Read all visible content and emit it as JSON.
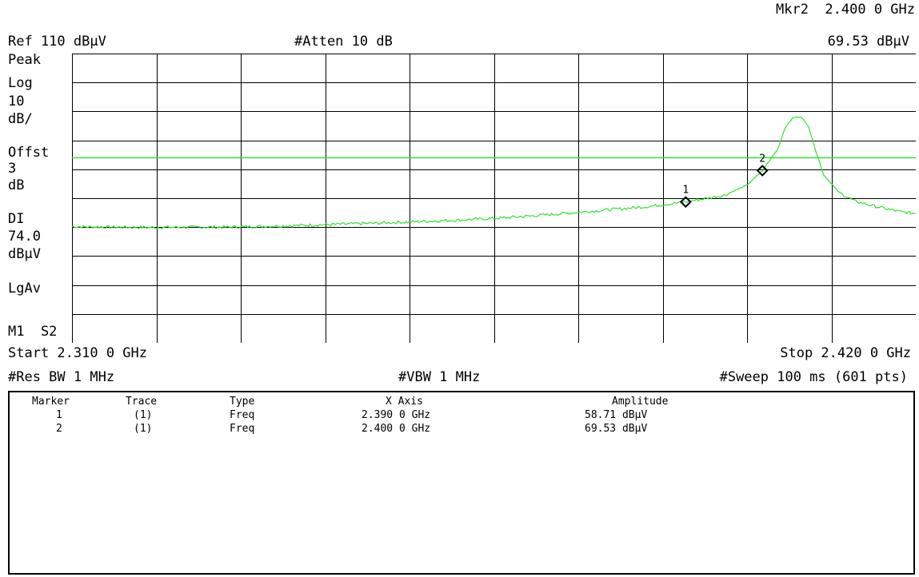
{
  "header": {
    "ref_level": "Ref 110 dBµV",
    "attenuation": "#Atten 10 dB",
    "marker_label": "Mkr2  2.400 0 GHz",
    "marker_amplitude": "69.53 dBµV"
  },
  "side_labels": {
    "detector": "Peak",
    "scale_type": "Log",
    "scale_value": "10",
    "scale_unit": "dB/",
    "offset_label": "Offst",
    "offset_value": "3",
    "offset_unit": "dB",
    "display_line_label": "DI",
    "display_line_value": "74.0",
    "display_line_unit": "dBµV",
    "averaging": "LgAv",
    "trigger": "M1  S2"
  },
  "footer": {
    "start": "Start 2.310 0 GHz",
    "stop": "Stop 2.420 0 GHz",
    "res_bw": "#Res BW 1 MHz",
    "vbw": "#VBW 1 MHz",
    "sweep": "#Sweep 100 ms (601 pts)"
  },
  "marker_table": {
    "headers": [
      "Marker",
      "Trace",
      "Type",
      "X Axis",
      "Amplitude"
    ],
    "rows": [
      [
        "1",
        "(1)",
        "Freq",
        "2.390 0 GHz",
        "58.71 dBµV"
      ],
      [
        "2",
        "(1)",
        "Freq",
        "2.400 0 GHz",
        "69.53 dBµV"
      ]
    ]
  },
  "colors": {
    "trace": "#33e033",
    "display_line": "#33e033",
    "grid": "#000000",
    "marker": "#000000"
  },
  "chart_data": {
    "type": "line",
    "title": "",
    "xlabel": "",
    "ylabel": "",
    "x_unit": "GHz",
    "y_unit": "dBµV",
    "xlim": [
      2.31,
      2.42
    ],
    "ylim": [
      10,
      110
    ],
    "grid": true,
    "series": [
      {
        "x": [
          2.31,
          2.315,
          2.32,
          2.325,
          2.33,
          2.335,
          2.34,
          2.345,
          2.35,
          2.355,
          2.36,
          2.365,
          2.37,
          2.375,
          2.38,
          2.385,
          2.39,
          2.395,
          2.398,
          2.4,
          2.402,
          2.403,
          2.404,
          2.405,
          2.406,
          2.407,
          2.408,
          2.41,
          2.412,
          2.415,
          2.418,
          2.42
        ],
        "values": [
          50.2,
          50.0,
          49.9,
          50.0,
          50.0,
          50.3,
          50.6,
          51.0,
          51.4,
          51.9,
          52.4,
          53.0,
          53.9,
          54.9,
          56.0,
          57.1,
          58.71,
          61.0,
          64.5,
          69.53,
          77.0,
          84.5,
          87.8,
          88.2,
          85.0,
          76.0,
          68.0,
          62.0,
          59.0,
          57.0,
          55.3,
          54.7
        ]
      }
    ],
    "display_line": 74.0,
    "markers": [
      {
        "label": "1",
        "x": 2.39,
        "y": 58.71
      },
      {
        "label": "2",
        "x": 2.4,
        "y": 69.53
      }
    ]
  }
}
